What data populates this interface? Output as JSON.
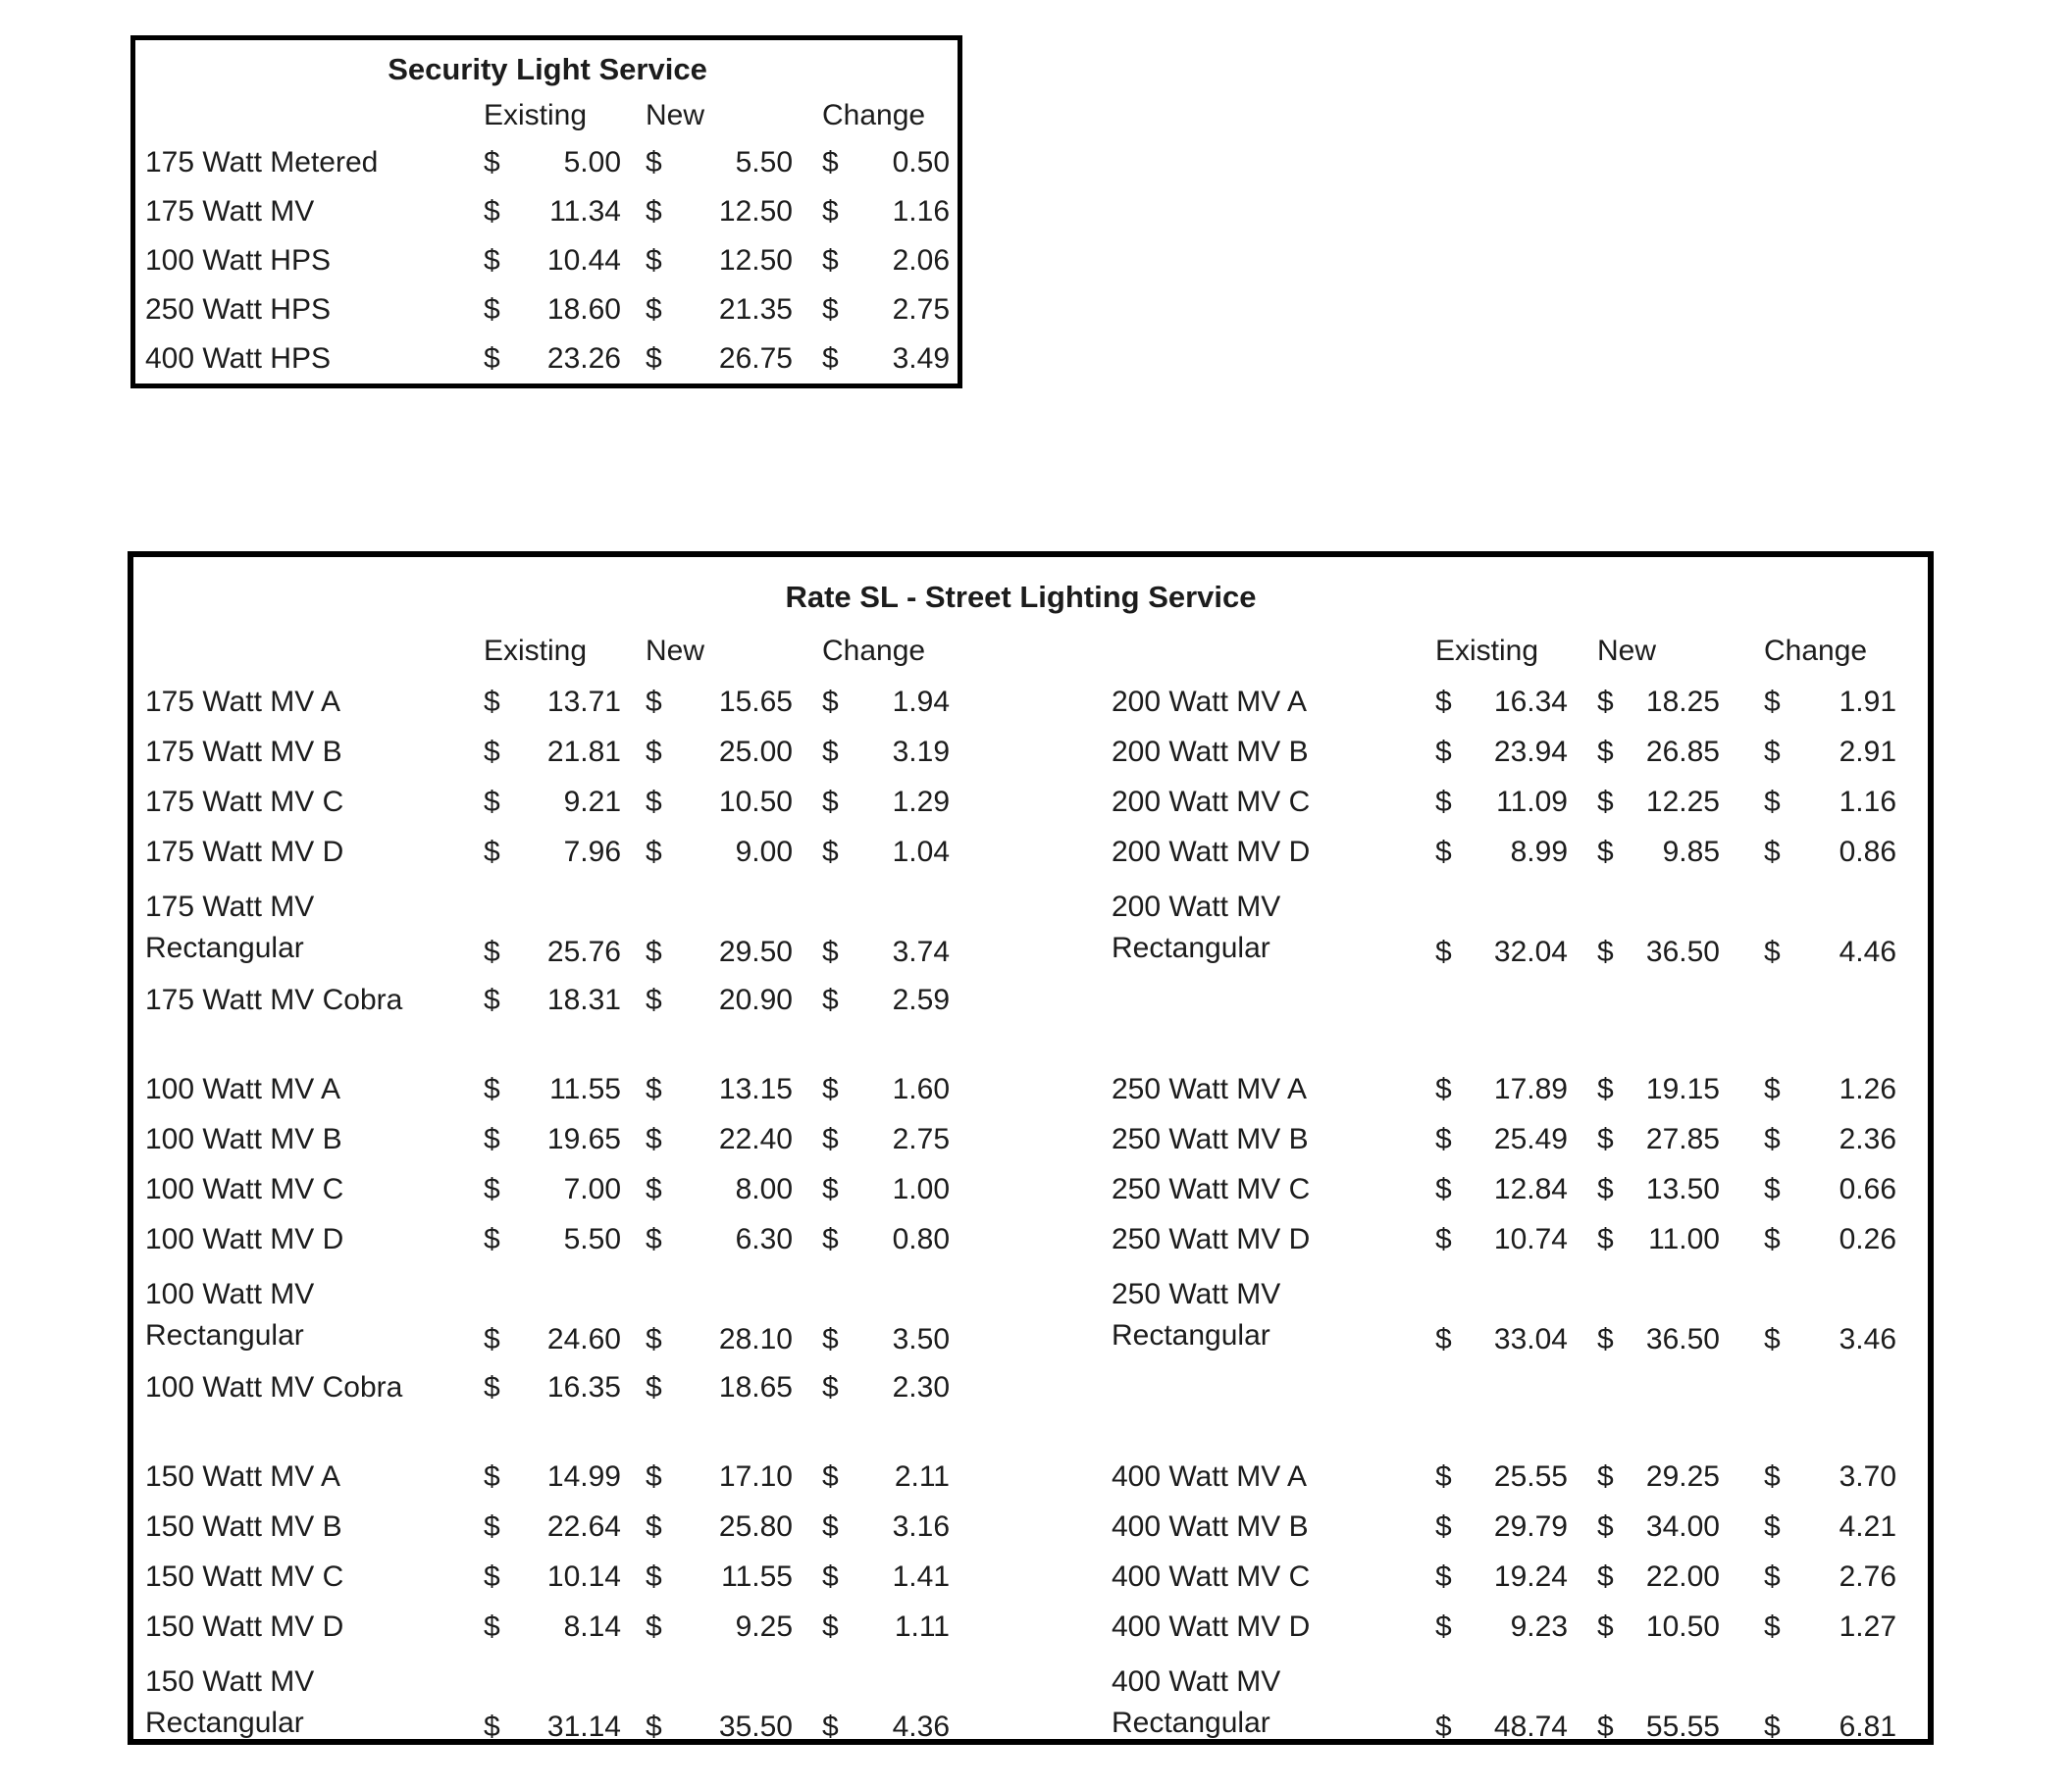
{
  "security_table": {
    "title": "Security Light Service",
    "headers": [
      "Existing",
      "New",
      "Change"
    ],
    "currency": "$",
    "rows": [
      {
        "label": "175 Watt Metered",
        "existing": "5.00",
        "new": "5.50",
        "change": "0.50"
      },
      {
        "label": "175 Watt MV",
        "existing": "11.34",
        "new": "12.50",
        "change": "1.16"
      },
      {
        "label": "100 Watt HPS",
        "existing": "10.44",
        "new": "12.50",
        "change": "2.06"
      },
      {
        "label": "250 Watt HPS",
        "existing": "18.60",
        "new": "21.35",
        "change": "2.75"
      },
      {
        "label": "400 Watt HPS",
        "existing": "23.26",
        "new": "26.75",
        "change": "3.49"
      }
    ]
  },
  "street_table": {
    "title": "Rate SL - Street Lighting Service",
    "left_headers": [
      "Existing",
      "New",
      "Change"
    ],
    "right_headers": [
      "Existing",
      "New",
      "Change"
    ],
    "currency": "$",
    "rows": [
      {
        "left": {
          "label": "175 Watt MV A",
          "existing": "13.71",
          "new": "15.65",
          "change": "1.94"
        },
        "right": {
          "label": "200 Watt MV A",
          "existing": "16.34",
          "new": "18.25",
          "change": "1.91"
        }
      },
      {
        "left": {
          "label": "175 Watt MV B",
          "existing": "21.81",
          "new": "25.00",
          "change": "3.19"
        },
        "right": {
          "label": "200 Watt MV B",
          "existing": "23.94",
          "new": "26.85",
          "change": "2.91"
        }
      },
      {
        "left": {
          "label": "175 Watt MV C",
          "existing": "9.21",
          "new": "10.50",
          "change": "1.29"
        },
        "right": {
          "label": "200 Watt MV C",
          "existing": "11.09",
          "new": "12.25",
          "change": "1.16"
        }
      },
      {
        "left": {
          "label": "175 Watt MV D",
          "existing": "7.96",
          "new": "9.00",
          "change": "1.04"
        },
        "right": {
          "label": "200 Watt MV D",
          "existing": "8.99",
          "new": "9.85",
          "change": "0.86"
        }
      },
      {
        "left": {
          "label": "175 Watt MV\nRectangular",
          "existing": "25.76",
          "new": "29.50",
          "change": "3.74"
        },
        "right": {
          "label": "200 Watt MV\nRectangular",
          "existing": "32.04",
          "new": "36.50",
          "change": "4.46"
        }
      },
      {
        "left": {
          "label": "175 Watt MV Cobra",
          "existing": "18.31",
          "new": "20.90",
          "change": "2.59"
        },
        "right": null
      },
      {
        "blank": true
      },
      {
        "left": {
          "label": "100 Watt MV A",
          "existing": "11.55",
          "new": "13.15",
          "change": "1.60"
        },
        "right": {
          "label": "250 Watt MV A",
          "existing": "17.89",
          "new": "19.15",
          "change": "1.26"
        }
      },
      {
        "left": {
          "label": "100 Watt MV B",
          "existing": "19.65",
          "new": "22.40",
          "change": "2.75"
        },
        "right": {
          "label": "250 Watt MV B",
          "existing": "25.49",
          "new": "27.85",
          "change": "2.36"
        }
      },
      {
        "left": {
          "label": "100 Watt MV C",
          "existing": "7.00",
          "new": "8.00",
          "change": "1.00"
        },
        "right": {
          "label": "250 Watt MV C",
          "existing": "12.84",
          "new": "13.50",
          "change": "0.66"
        }
      },
      {
        "left": {
          "label": "100 Watt MV D",
          "existing": "5.50",
          "new": "6.30",
          "change": "0.80"
        },
        "right": {
          "label": "250 Watt MV D",
          "existing": "10.74",
          "new": "11.00",
          "change": "0.26"
        }
      },
      {
        "left": {
          "label": "100 Watt MV\nRectangular",
          "existing": "24.60",
          "new": "28.10",
          "change": "3.50"
        },
        "right": {
          "label": "250 Watt MV\nRectangular",
          "existing": "33.04",
          "new": "36.50",
          "change": "3.46"
        }
      },
      {
        "left": {
          "label": "100 Watt MV Cobra",
          "existing": "16.35",
          "new": "18.65",
          "change": "2.30"
        },
        "right": null
      },
      {
        "blank": true
      },
      {
        "left": {
          "label": "150 Watt MV A",
          "existing": "14.99",
          "new": "17.10",
          "change": "2.11"
        },
        "right": {
          "label": "400 Watt MV A",
          "existing": "25.55",
          "new": "29.25",
          "change": "3.70"
        }
      },
      {
        "left": {
          "label": "150 Watt MV B",
          "existing": "22.64",
          "new": "25.80",
          "change": "3.16"
        },
        "right": {
          "label": "400 Watt MV B",
          "existing": "29.79",
          "new": "34.00",
          "change": "4.21"
        }
      },
      {
        "left": {
          "label": "150 Watt MV C",
          "existing": "10.14",
          "new": "11.55",
          "change": "1.41"
        },
        "right": {
          "label": "400 Watt MV C",
          "existing": "19.24",
          "new": "22.00",
          "change": "2.76"
        }
      },
      {
        "left": {
          "label": "150 Watt MV D",
          "existing": "8.14",
          "new": "9.25",
          "change": "1.11"
        },
        "right": {
          "label": "400 Watt MV D",
          "existing": "9.23",
          "new": "10.50",
          "change": "1.27"
        }
      },
      {
        "left": {
          "label": "150 Watt MV\nRectangular",
          "existing": "31.14",
          "new": "35.50",
          "change": "4.36"
        },
        "right": {
          "label": "400 Watt MV\nRectangular",
          "existing": "48.74",
          "new": "55.55",
          "change": "6.81"
        }
      }
    ]
  }
}
